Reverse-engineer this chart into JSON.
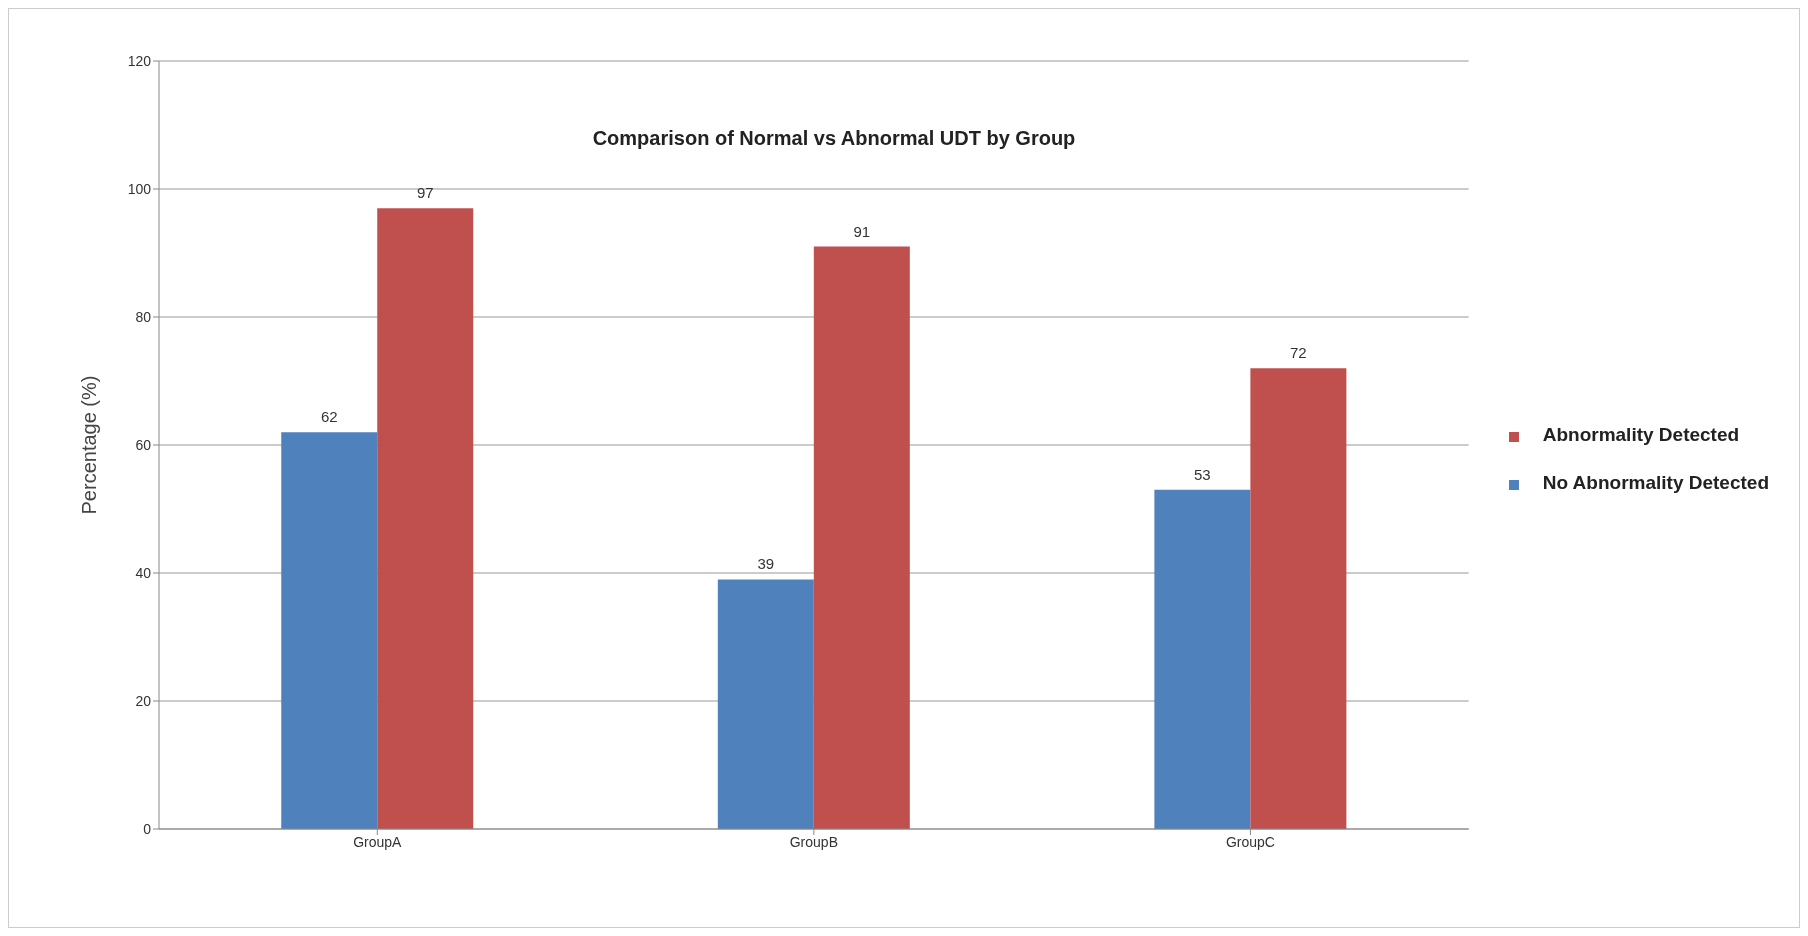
{
  "chart_data": {
    "type": "bar",
    "title": "Comparison of Normal vs Abnormal UDT by Group",
    "ylabel": "Percentage (%)",
    "categories": [
      "GroupA",
      "GroupB",
      "GroupC"
    ],
    "series": [
      {
        "name": "No Abnormality Detected",
        "color": "#4f81bd",
        "values": [
          62,
          39,
          53
        ]
      },
      {
        "name": "Abnormality Detected",
        "color": "#c0504d",
        "values": [
          97,
          91,
          72
        ]
      }
    ],
    "ylim": [
      0,
      120
    ],
    "yticks": [
      0,
      20,
      40,
      60,
      80,
      100,
      120
    ],
    "grid": "y",
    "legend": "right",
    "data_labels": true
  }
}
